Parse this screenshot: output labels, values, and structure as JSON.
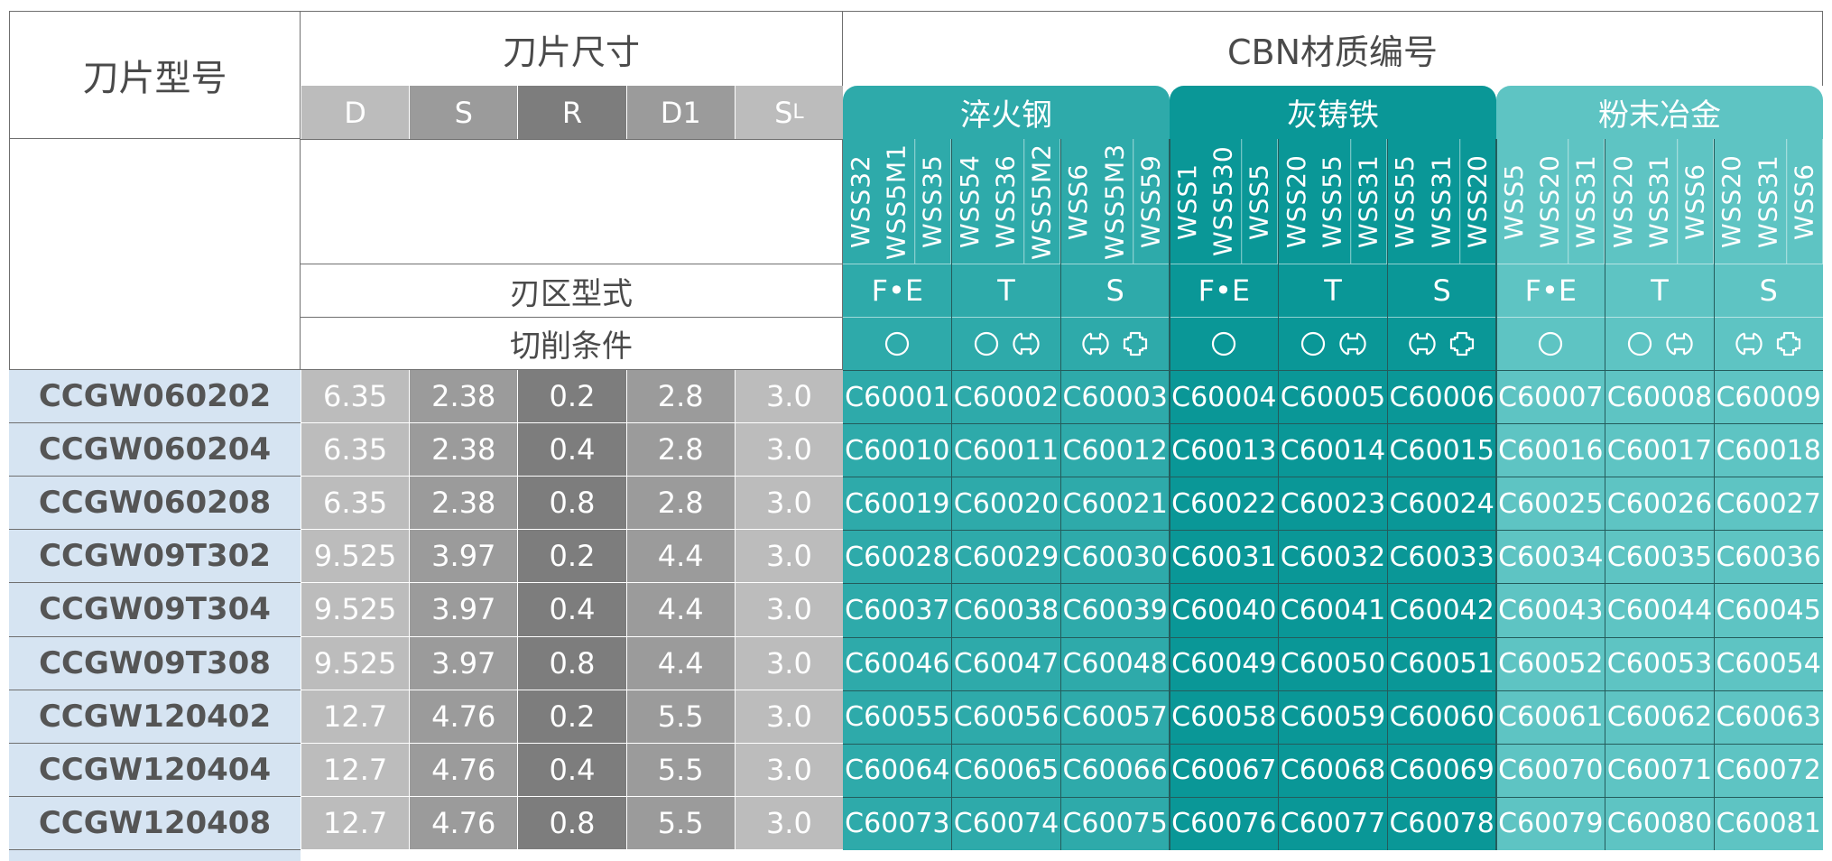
{
  "header": {
    "model_title": "刀片型号",
    "size_title": "刀片尺寸",
    "cbn_title": "CBN材质编号",
    "edge_type_label": "刃区型式",
    "cutting_condition_label": "切削条件"
  },
  "dimension_columns": [
    {
      "main": "D",
      "sub": ""
    },
    {
      "main": "S",
      "sub": ""
    },
    {
      "main": "R",
      "sub": ""
    },
    {
      "main": "D1",
      "sub": ""
    },
    {
      "main": "S",
      "sub": "L"
    }
  ],
  "material_groups": [
    {
      "name": "淬火钢",
      "edge_types": [
        {
          "label": "F•E",
          "grades": [
            "WSS32",
            "WSS5M1",
            "WSS35"
          ],
          "conditions": [
            "continuous"
          ]
        },
        {
          "label": "T",
          "grades": [
            "WSS54",
            "WSS36",
            "WSS5M2"
          ],
          "conditions": [
            "continuous",
            "light-interrupted"
          ]
        },
        {
          "label": "S",
          "grades": [
            "WSS6",
            "WSS5M3",
            "WSS59"
          ],
          "conditions": [
            "light-interrupted",
            "heavy-interrupted"
          ]
        }
      ]
    },
    {
      "name": "灰铸铁",
      "edge_types": [
        {
          "label": "F•E",
          "grades": [
            "WSS1",
            "WSS530",
            "WSS5"
          ],
          "conditions": [
            "continuous"
          ]
        },
        {
          "label": "T",
          "grades": [
            "WSS20",
            "WSS55",
            "WSS31"
          ],
          "conditions": [
            "continuous",
            "light-interrupted"
          ]
        },
        {
          "label": "S",
          "grades": [
            "WSS55",
            "WSS31",
            "WSS20"
          ],
          "conditions": [
            "light-interrupted",
            "heavy-interrupted"
          ]
        }
      ]
    },
    {
      "name": "粉末冶金",
      "edge_types": [
        {
          "label": "F•E",
          "grades": [
            "WSS5",
            "WSS20",
            "WSS31"
          ],
          "conditions": [
            "continuous"
          ]
        },
        {
          "label": "T",
          "grades": [
            "WSS20",
            "WSS31",
            "WSS6"
          ],
          "conditions": [
            "continuous",
            "light-interrupted"
          ]
        },
        {
          "label": "S",
          "grades": [
            "WSS20",
            "WSS31",
            "WSS6"
          ],
          "conditions": [
            "light-interrupted",
            "heavy-interrupted"
          ]
        }
      ]
    }
  ],
  "rows": [
    {
      "model": "CCGW060202",
      "dims": [
        "6.35",
        "2.38",
        "0.2",
        "2.8",
        "3.0"
      ],
      "codes": [
        "C60001",
        "C60002",
        "C60003",
        "C60004",
        "C60005",
        "C60006",
        "C60007",
        "C60008",
        "C60009"
      ]
    },
    {
      "model": "CCGW060204",
      "dims": [
        "6.35",
        "2.38",
        "0.4",
        "2.8",
        "3.0"
      ],
      "codes": [
        "C60010",
        "C60011",
        "C60012",
        "C60013",
        "C60014",
        "C60015",
        "C60016",
        "C60017",
        "C60018"
      ]
    },
    {
      "model": "CCGW060208",
      "dims": [
        "6.35",
        "2.38",
        "0.8",
        "2.8",
        "3.0"
      ],
      "codes": [
        "C60019",
        "C60020",
        "C60021",
        "C60022",
        "C60023",
        "C60024",
        "C60025",
        "C60026",
        "C60027"
      ]
    },
    {
      "model": "CCGW09T302",
      "dims": [
        "9.525",
        "3.97",
        "0.2",
        "4.4",
        "3.0"
      ],
      "codes": [
        "C60028",
        "C60029",
        "C60030",
        "C60031",
        "C60032",
        "C60033",
        "C60034",
        "C60035",
        "C60036"
      ]
    },
    {
      "model": "CCGW09T304",
      "dims": [
        "9.525",
        "3.97",
        "0.4",
        "4.4",
        "3.0"
      ],
      "codes": [
        "C60037",
        "C60038",
        "C60039",
        "C60040",
        "C60041",
        "C60042",
        "C60043",
        "C60044",
        "C60045"
      ]
    },
    {
      "model": "CCGW09T308",
      "dims": [
        "9.525",
        "3.97",
        "0.8",
        "4.4",
        "3.0"
      ],
      "codes": [
        "C60046",
        "C60047",
        "C60048",
        "C60049",
        "C60050",
        "C60051",
        "C60052",
        "C60053",
        "C60054"
      ]
    },
    {
      "model": "CCGW120402",
      "dims": [
        "12.7",
        "4.76",
        "0.2",
        "5.5",
        "3.0"
      ],
      "codes": [
        "C60055",
        "C60056",
        "C60057",
        "C60058",
        "C60059",
        "C60060",
        "C60061",
        "C60062",
        "C60063"
      ]
    },
    {
      "model": "CCGW120404",
      "dims": [
        "12.7",
        "4.76",
        "0.4",
        "5.5",
        "3.0"
      ],
      "codes": [
        "C60064",
        "C60065",
        "C60066",
        "C60067",
        "C60068",
        "C60069",
        "C60070",
        "C60071",
        "C60072"
      ]
    },
    {
      "model": "CCGW120408",
      "dims": [
        "12.7",
        "4.76",
        "0.8",
        "5.5",
        "3.0"
      ],
      "codes": [
        "C60073",
        "C60074",
        "C60075",
        "C60076",
        "C60077",
        "C60078",
        "C60079",
        "C60080",
        "C60081"
      ]
    }
  ],
  "colors": {
    "dimension_columns": [
      "#bcbcbc",
      "#9b9b9b",
      "#7d7d7d",
      "#9b9b9b",
      "#bcbcbc"
    ],
    "material_groups": [
      "#2eaaaa",
      "#0a9797",
      "#5ec4c3"
    ],
    "model_column": "#d6e4f2",
    "model_text": "#555555",
    "header_text": "#4a4a4a",
    "grid_line": "#6f6f6f",
    "white": "#ffffff"
  }
}
